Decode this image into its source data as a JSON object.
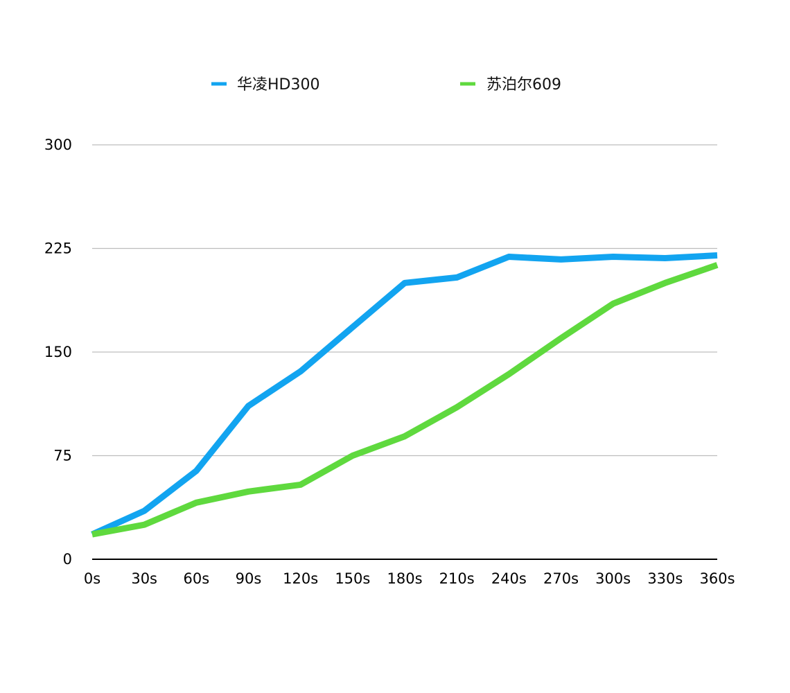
{
  "chart_data": {
    "type": "line",
    "title": "",
    "xlabel": "",
    "ylabel": "",
    "categories": [
      "0s",
      "30s",
      "60s",
      "90s",
      "120s",
      "150s",
      "180s",
      "210s",
      "240s",
      "270s",
      "300s",
      "330s",
      "360s"
    ],
    "y_ticks": [
      0,
      75,
      150,
      225,
      300
    ],
    "ylim": [
      0,
      300
    ],
    "grid": true,
    "legend_position": "top",
    "series": [
      {
        "name": "华凌HD300",
        "color": "#12a4f0",
        "values": [
          18,
          35,
          64,
          111,
          136,
          168,
          200,
          204,
          219,
          217,
          219,
          218,
          220
        ]
      },
      {
        "name": "苏泊尔609",
        "color": "#5fd93e",
        "values": [
          18,
          25,
          41,
          49,
          54,
          75,
          89,
          110,
          134,
          160,
          185,
          200,
          213
        ]
      }
    ]
  }
}
